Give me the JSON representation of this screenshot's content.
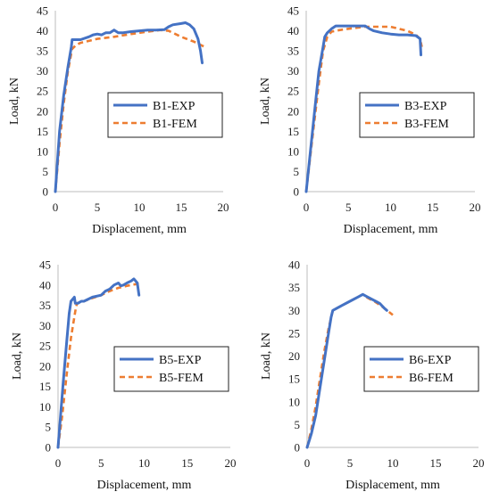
{
  "colors": {
    "exp": "#4472C4",
    "fem": "#ED7D31",
    "axis": "#bdbdbd"
  },
  "chart_data": [
    {
      "type": "line",
      "xlabel": "Displacement, mm",
      "ylabel": "Load, kN",
      "xlim": [
        0,
        20
      ],
      "ylim": [
        0,
        45
      ],
      "xticks": [
        0,
        5,
        10,
        15,
        20
      ],
      "yticks": [
        0,
        5,
        10,
        15,
        20,
        25,
        30,
        35,
        40,
        45
      ],
      "legend_position": "center-right",
      "series": [
        {
          "name": "B1-EXP",
          "color": "#4472C4",
          "style": "solid",
          "x": [
            0,
            0.5,
            1.0,
            1.5,
            1.9,
            2.0,
            2.5,
            3.0,
            4.0,
            4.5,
            5.0,
            5.5,
            6.0,
            6.5,
            7.0,
            7.5,
            8.0,
            9.0,
            10.0,
            11.0,
            12.0,
            13.0,
            13.5,
            14.0,
            15.0,
            15.5,
            16.0,
            16.5,
            17.0,
            17.3,
            17.5
          ],
          "y": [
            0,
            15,
            24,
            31,
            36,
            37.8,
            37.8,
            37.8,
            38.5,
            39,
            39.2,
            39,
            39.5,
            39.5,
            40.2,
            39.5,
            39.5,
            39.8,
            40,
            40.2,
            40.2,
            40.3,
            41,
            41.5,
            41.8,
            42,
            41.5,
            40.5,
            38,
            35,
            32
          ]
        },
        {
          "name": "B1-FEM",
          "color": "#ED7D31",
          "style": "dashed",
          "x": [
            0,
            0.5,
            1.0,
            1.5,
            2.0,
            2.5,
            3.0,
            5.0,
            7.0,
            9.0,
            11.0,
            12.5,
            13.5,
            15.0,
            16.5,
            17.8
          ],
          "y": [
            0,
            12,
            22,
            30,
            35.5,
            36.5,
            37,
            38,
            38.5,
            39.2,
            39.8,
            40.2,
            40,
            38.5,
            37.3,
            36
          ]
        }
      ]
    },
    {
      "type": "line",
      "xlabel": "Displacement, mm",
      "ylabel": "Load, kN",
      "xlim": [
        0,
        20
      ],
      "ylim": [
        0,
        45
      ],
      "xticks": [
        0,
        5,
        10,
        15,
        20
      ],
      "yticks": [
        0,
        5,
        10,
        15,
        20,
        25,
        30,
        35,
        40,
        45
      ],
      "legend_position": "center-right",
      "series": [
        {
          "name": "B3-EXP",
          "color": "#4472C4",
          "style": "solid",
          "x": [
            0,
            0.5,
            1.0,
            1.5,
            2.0,
            2.2,
            2.5,
            3.0,
            3.5,
            4.0,
            5.0,
            6.0,
            7.0,
            7.5,
            8.0,
            9.0,
            10.0,
            11.0,
            12.0,
            13.0,
            13.5,
            13.6
          ],
          "y": [
            0,
            10,
            20,
            30,
            36,
            38.5,
            39.5,
            40.5,
            41.2,
            41.2,
            41.2,
            41.2,
            41.2,
            40.5,
            40,
            39.5,
            39.2,
            39,
            39,
            38.8,
            38,
            34
          ]
        },
        {
          "name": "B3-FEM",
          "color": "#ED7D31",
          "style": "dashed",
          "x": [
            0,
            0.5,
            1.0,
            1.5,
            2.0,
            2.5,
            3.0,
            4.0,
            5.0,
            7.0,
            9.0,
            10.0,
            11.0,
            12.0,
            13.0,
            13.5,
            13.7
          ],
          "y": [
            0,
            9,
            18,
            27,
            35,
            38.5,
            39.8,
            40.2,
            40.5,
            41,
            41,
            41,
            40.5,
            40,
            39,
            38,
            36
          ]
        }
      ]
    },
    {
      "type": "line",
      "xlabel": "Displacement, mm",
      "ylabel": "Load, kN",
      "xlim": [
        0,
        20
      ],
      "ylim": [
        0,
        45
      ],
      "xticks": [
        0,
        5,
        10,
        15,
        20
      ],
      "yticks": [
        0,
        5,
        10,
        15,
        20,
        25,
        30,
        35,
        40,
        45
      ],
      "legend_position": "center-right",
      "series": [
        {
          "name": "B5-EXP",
          "color": "#4472C4",
          "style": "solid",
          "x": [
            0,
            0.3,
            0.6,
            1.0,
            1.3,
            1.5,
            1.7,
            1.9,
            2.0,
            2.3,
            2.7,
            3.0,
            4.0,
            5.0,
            5.5,
            6.0,
            6.5,
            7.0,
            7.3,
            7.6,
            8.0,
            8.5,
            8.8,
            9.0,
            9.2,
            9.4
          ],
          "y": [
            0,
            8,
            16,
            26,
            33,
            36,
            36.5,
            37,
            35.5,
            35.5,
            36,
            36,
            37,
            37.5,
            38.5,
            39,
            40,
            40.5,
            39.8,
            40,
            40.5,
            41,
            41.5,
            41,
            40.5,
            37.5
          ]
        },
        {
          "name": "B5-FEM",
          "color": "#ED7D31",
          "style": "dashed",
          "x": [
            0,
            0.5,
            1.0,
            1.5,
            2.0,
            2.2,
            3.0,
            4.0,
            5.0,
            6.0,
            7.0,
            8.0,
            9.0,
            9.5
          ],
          "y": [
            0,
            8,
            18,
            27,
            33.5,
            35.5,
            36,
            36.8,
            37.5,
            38.5,
            39.3,
            39.8,
            40.2,
            40.3
          ]
        }
      ]
    },
    {
      "type": "line",
      "xlabel": "Displacement, mm",
      "ylabel": "Load, kN",
      "xlim": [
        0,
        20
      ],
      "ylim": [
        0,
        40
      ],
      "xticks": [
        0,
        5,
        10,
        15,
        20
      ],
      "yticks": [
        0,
        5,
        10,
        15,
        20,
        25,
        30,
        35,
        40
      ],
      "legend_position": "center-right",
      "series": [
        {
          "name": "B6-EXP",
          "color": "#4472C4",
          "style": "solid",
          "x": [
            0,
            0.5,
            1.0,
            1.5,
            2.0,
            2.5,
            2.8,
            3.0,
            3.5,
            4.0,
            5.0,
            6.0,
            6.5,
            7.0,
            7.5,
            8.0,
            8.5,
            9.0,
            9.3
          ],
          "y": [
            0,
            3,
            7,
            13,
            19,
            25,
            28.5,
            30,
            30.5,
            31,
            32,
            33,
            33.5,
            33,
            32.5,
            32,
            31.5,
            30.5,
            30
          ]
        },
        {
          "name": "B6-FEM",
          "color": "#ED7D31",
          "style": "dashed",
          "x": [
            0,
            0.5,
            1.0,
            1.5,
            2.0,
            2.5,
            3.0,
            3.5,
            4.0,
            5.0,
            6.0,
            6.5,
            7.0,
            8.0,
            9.0,
            10.0
          ],
          "y": [
            0,
            4,
            9,
            15,
            21,
            26,
            30,
            30.5,
            31,
            32,
            33,
            33.5,
            32.8,
            31.8,
            30.5,
            29
          ]
        }
      ]
    }
  ]
}
